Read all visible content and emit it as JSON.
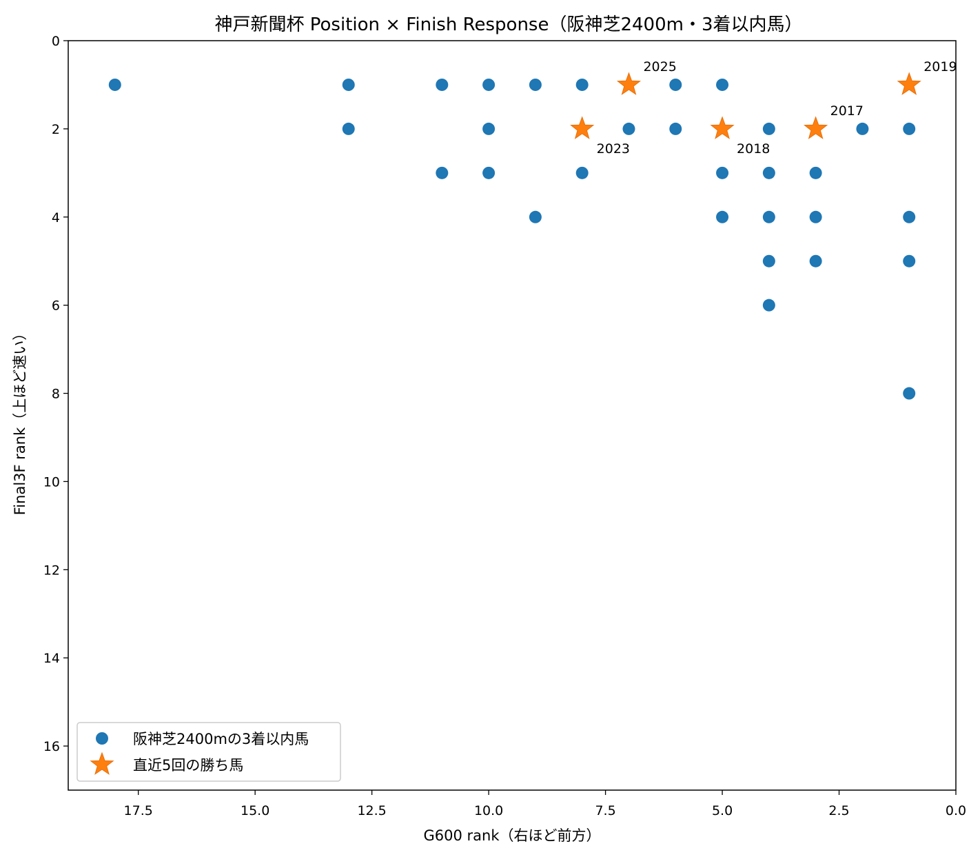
{
  "chart_data": {
    "type": "scatter",
    "title": "神戸新聞杯 Position × Finish Response（阪神芝2400m・3着以内馬）",
    "xlabel": "G600 rank（右ほど前方）",
    "ylabel": "Final3F rank（上ほど速い）",
    "xlim": [
      19.0,
      0.0
    ],
    "ylim": [
      17.0,
      0.0
    ],
    "x_reversed": true,
    "y_reversed": true,
    "xticks": [
      17.5,
      15.0,
      12.5,
      10.0,
      7.5,
      5.0,
      2.5,
      0.0
    ],
    "xtick_labels": [
      "17.5",
      "15.0",
      "12.5",
      "10.0",
      "7.5",
      "5.0",
      "2.5",
      "0.0"
    ],
    "yticks": [
      0,
      2,
      4,
      6,
      8,
      10,
      12,
      14,
      16
    ],
    "ytick_labels": [
      "0",
      "2",
      "4",
      "6",
      "8",
      "10",
      "12",
      "14",
      "16"
    ],
    "legend_position": "lower-left",
    "series": [
      {
        "name": "阪神芝2400mの3着以内馬",
        "marker": "circle",
        "color": "#1f77b4",
        "points": [
          [
            18,
            1
          ],
          [
            13,
            1
          ],
          [
            13,
            2
          ],
          [
            11,
            1
          ],
          [
            11,
            3
          ],
          [
            10,
            1
          ],
          [
            10,
            2
          ],
          [
            10,
            3
          ],
          [
            9,
            1
          ],
          [
            9,
            4
          ],
          [
            8,
            1
          ],
          [
            8,
            3
          ],
          [
            7,
            2
          ],
          [
            6,
            1
          ],
          [
            6,
            2
          ],
          [
            5,
            1
          ],
          [
            5,
            3
          ],
          [
            5,
            4
          ],
          [
            4,
            2
          ],
          [
            4,
            3
          ],
          [
            4,
            4
          ],
          [
            4,
            5
          ],
          [
            4,
            6
          ],
          [
            3,
            3
          ],
          [
            3,
            4
          ],
          [
            3,
            5
          ],
          [
            2,
            2
          ],
          [
            1,
            2
          ],
          [
            1,
            4
          ],
          [
            1,
            5
          ],
          [
            1,
            8
          ]
        ]
      },
      {
        "name": "直近5回の勝ち馬",
        "marker": "star",
        "color": "#ff7f0e",
        "points": [
          {
            "x": 7,
            "y": 1,
            "label": "2025"
          },
          {
            "x": 1,
            "y": 1,
            "label": "2019"
          },
          {
            "x": 8,
            "y": 2,
            "label": "2023"
          },
          {
            "x": 5,
            "y": 2,
            "label": "2018"
          },
          {
            "x": 3,
            "y": 2,
            "label": "2017"
          }
        ]
      }
    ]
  }
}
